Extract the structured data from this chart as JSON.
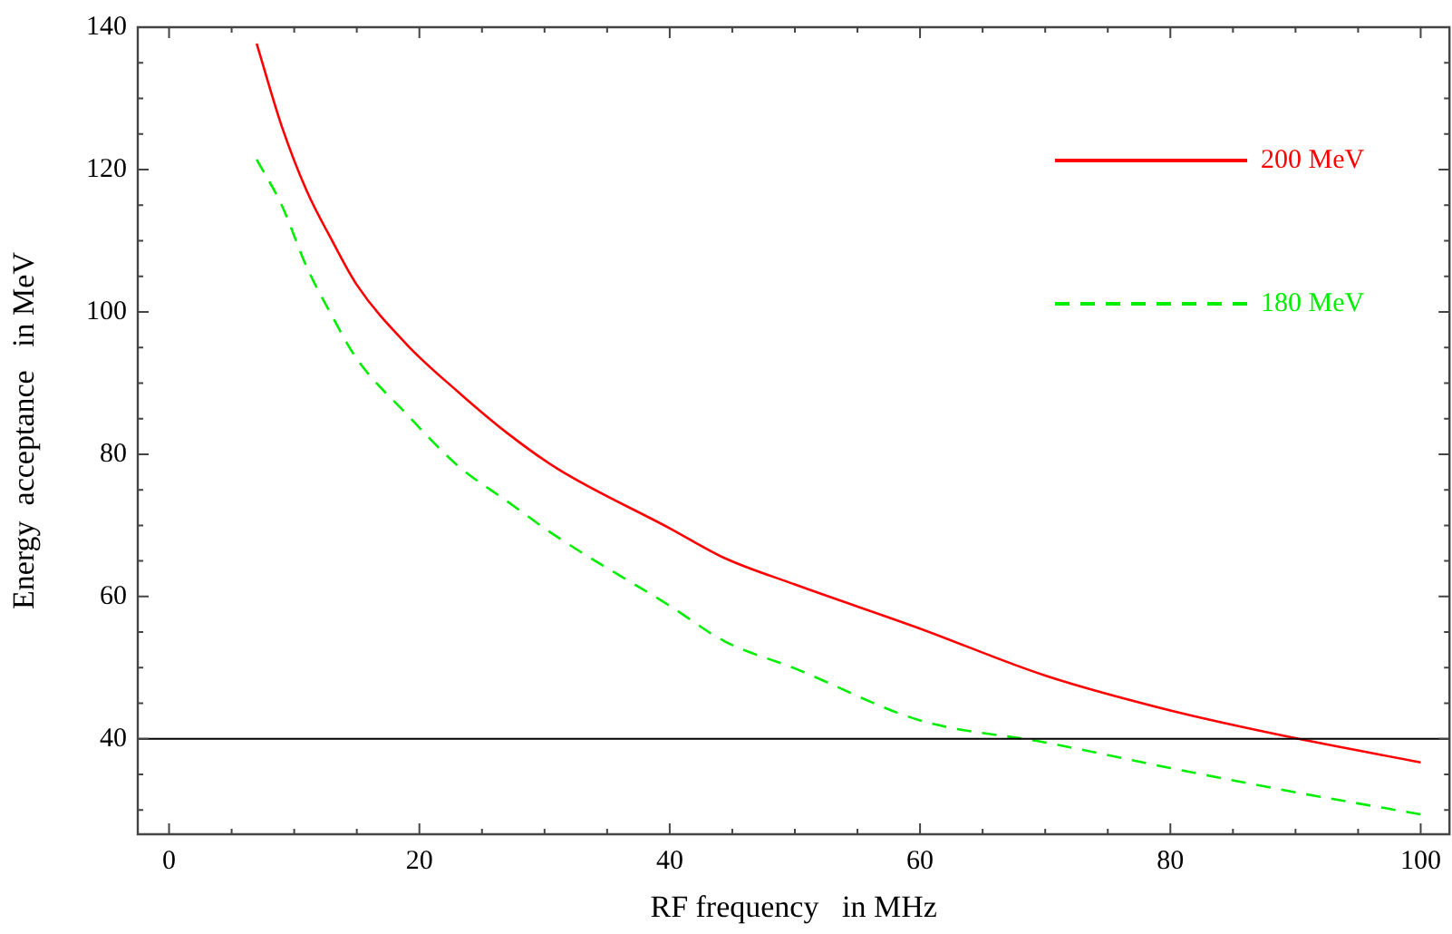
{
  "chart_data": {
    "type": "line",
    "xlabel": "RF frequency   in MHz",
    "ylabel": "Energy  acceptance   in MeV",
    "xlim": [
      -2.5,
      102.3
    ],
    "ylim": [
      26.6,
      140
    ],
    "xticks": [
      0,
      {
        "value": 5,
        "label": null
      },
      {
        "value": 10,
        "label": null
      },
      {
        "value": 15,
        "label": null
      },
      20,
      {
        "value": 25,
        "label": null
      },
      {
        "value": 30,
        "label": null
      },
      {
        "value": 35,
        "label": null
      },
      40,
      {
        "value": 45,
        "label": null
      },
      {
        "value": 50,
        "label": null
      },
      {
        "value": 55,
        "label": null
      },
      60,
      {
        "value": 65,
        "label": null
      },
      {
        "value": 70,
        "label": null
      },
      {
        "value": 75,
        "label": null
      },
      80,
      {
        "value": 85,
        "label": null
      },
      {
        "value": 90,
        "label": null
      },
      {
        "value": 95,
        "label": null
      },
      100
    ],
    "yticks": [
      {
        "value": 30,
        "label": null
      },
      {
        "value": 35,
        "label": null
      },
      40,
      {
        "value": 45,
        "label": null
      },
      {
        "value": 50,
        "label": null
      },
      {
        "value": 55,
        "label": null
      },
      60,
      {
        "value": 65,
        "label": null
      },
      {
        "value": 70,
        "label": null
      },
      {
        "value": 75,
        "label": null
      },
      80,
      {
        "value": 85,
        "label": null
      },
      {
        "value": 90,
        "label": null
      },
      {
        "value": 95,
        "label": null
      },
      100,
      {
        "value": 105,
        "label": null
      },
      {
        "value": 110,
        "label": null
      },
      {
        "value": 115,
        "label": null
      },
      120,
      {
        "value": 125,
        "label": null
      },
      {
        "value": 130,
        "label": null
      },
      {
        "value": 135,
        "label": null
      },
      140
    ],
    "x": [
      7,
      9,
      11,
      13,
      15,
      19,
      23,
      27,
      31,
      40,
      44.4,
      50,
      60,
      70,
      80,
      90,
      100
    ],
    "series": [
      {
        "name": "200 MeV",
        "color": "#ff0000",
        "line_style": "solid",
        "values": [
          137.7,
          126.1,
          117,
          110.1,
          103.8,
          95.4,
          88.9,
          83,
          78,
          69.6,
          65.4,
          61.7,
          55.5,
          48.9,
          44,
          40.1,
          36.7
        ]
      },
      {
        "name": "180 MeV",
        "color": "#00ee00",
        "line_style": "dashed",
        "values": [
          121.4,
          115,
          106.3,
          99.5,
          93.4,
          85.6,
          78.5,
          73.4,
          68.4,
          58.7,
          53.7,
          49.9,
          42.6,
          39.5,
          35.9,
          32.5,
          29.4
        ]
      }
    ],
    "ref_lines": [
      {
        "axis": "y",
        "value": 40,
        "color": "#000000"
      }
    ],
    "legend": "top right",
    "grid": false,
    "marker": "none"
  }
}
